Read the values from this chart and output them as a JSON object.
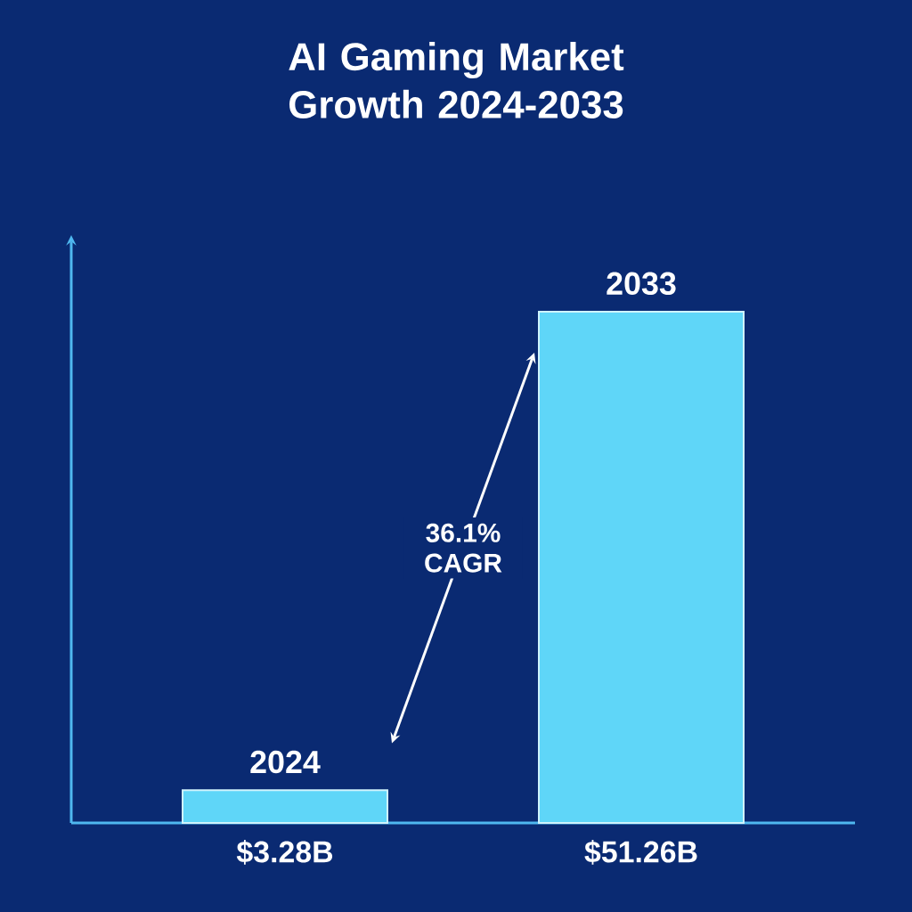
{
  "chart_data": {
    "type": "bar",
    "title": "AI Gaming Market Growth 2024-2033",
    "categories": [
      "2024",
      "2033"
    ],
    "values": [
      3.28,
      51.26
    ],
    "value_labels": [
      "$3.28B",
      "$51.26B"
    ],
    "color": "#5fd6f8",
    "annotations": [
      "36.1% CAGR"
    ]
  }
}
